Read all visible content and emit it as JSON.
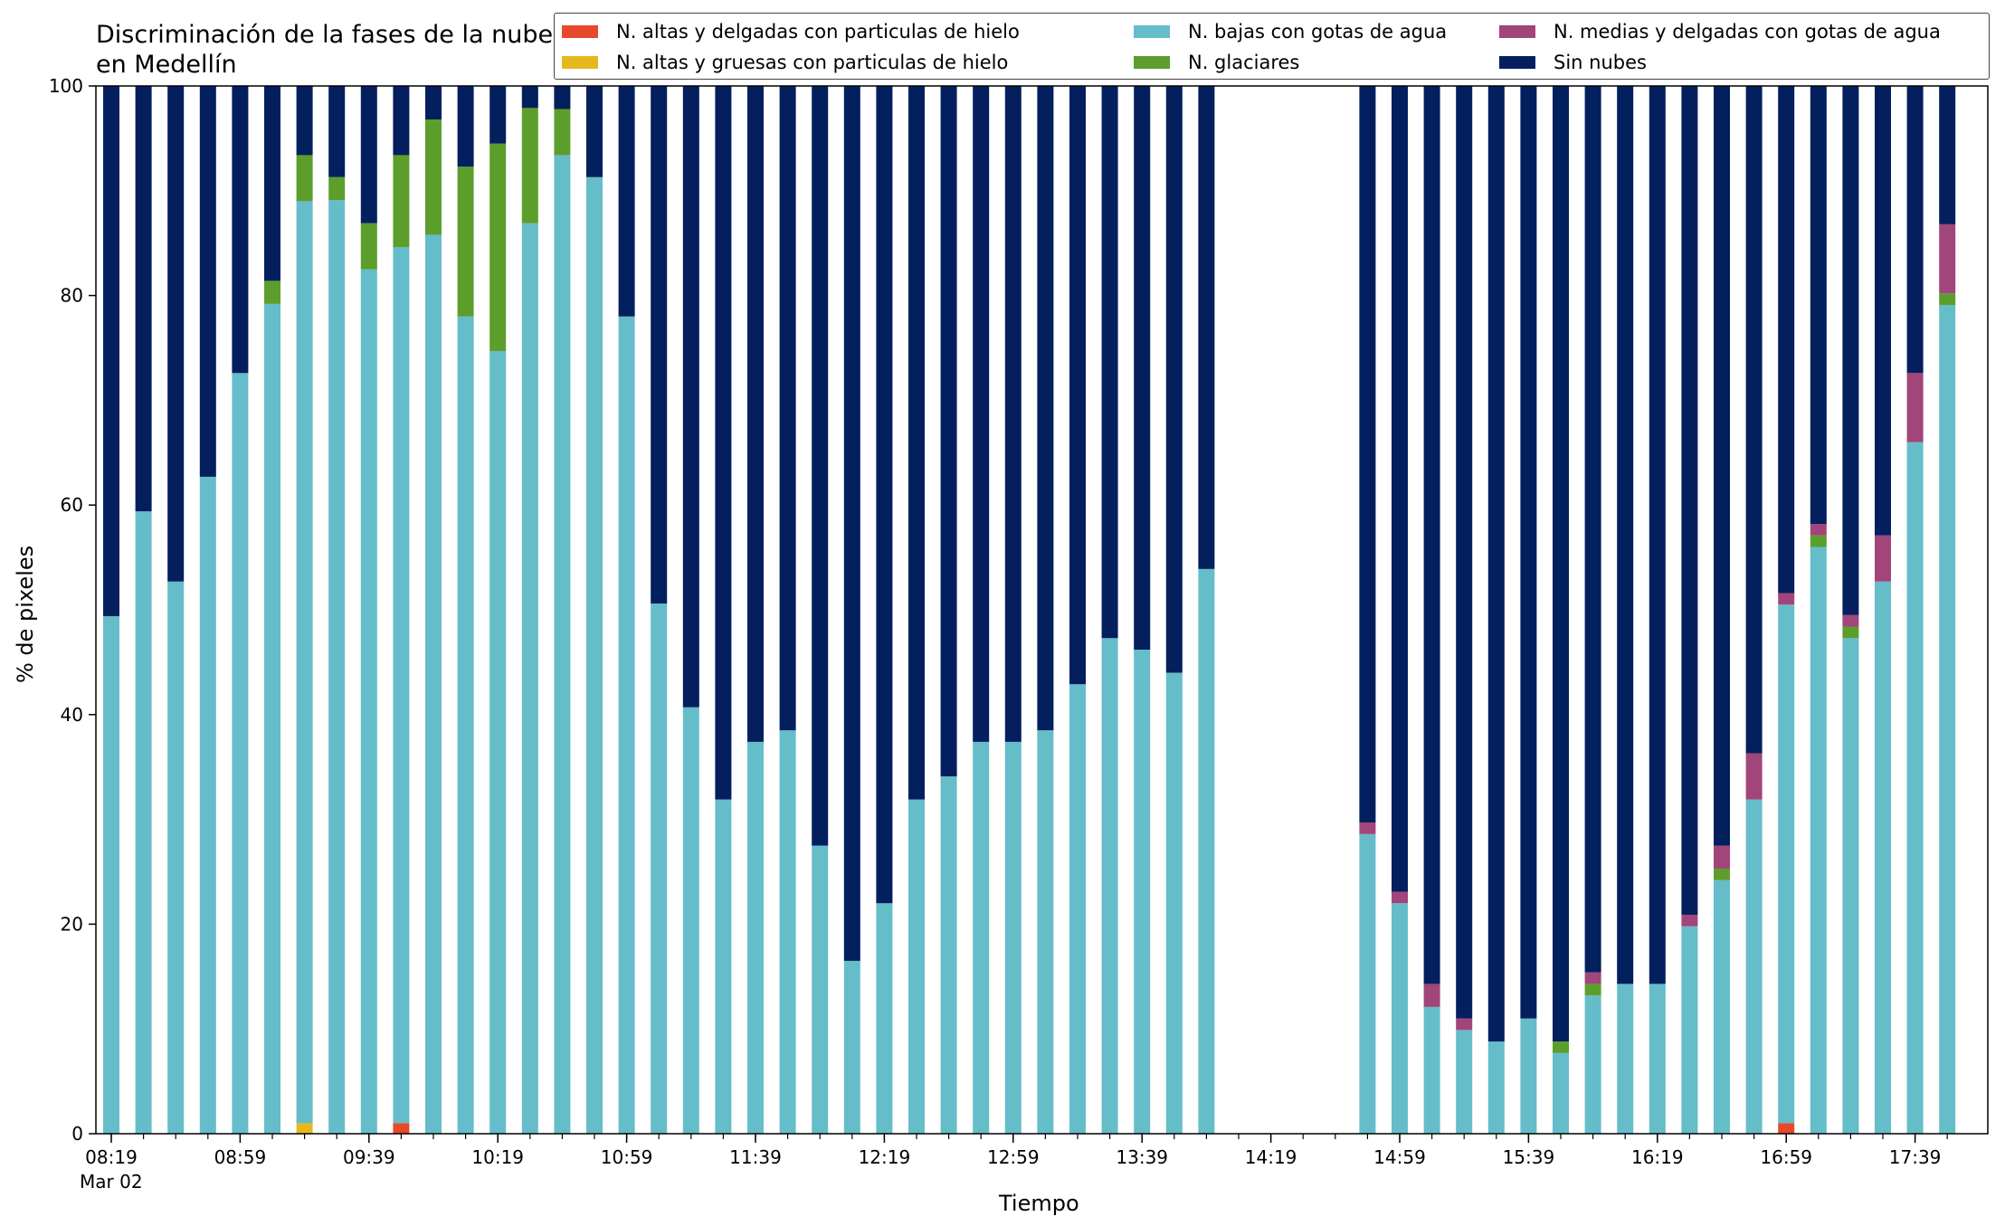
{
  "chart_data": {
    "type": "bar",
    "stacked": true,
    "title": "Discriminación de la fases de la nube en Medellín",
    "xlabel": "Tiempo",
    "ylabel": "% de pixeles",
    "ylim": [
      0,
      100
    ],
    "yticks": [
      "0",
      "20",
      "40",
      "60",
      "80",
      "100"
    ],
    "xticks": [
      {
        "index": 0,
        "label": "08:19",
        "sublabel": "Mar 02"
      },
      {
        "index": 4,
        "label": "08:59"
      },
      {
        "index": 8,
        "label": "09:39"
      },
      {
        "index": 12,
        "label": "10:19"
      },
      {
        "index": 16,
        "label": "10:59"
      },
      {
        "index": 20,
        "label": "11:39"
      },
      {
        "index": 24,
        "label": "12:19"
      },
      {
        "index": 28,
        "label": "12:59"
      },
      {
        "index": 32,
        "label": "13:39"
      },
      {
        "index": 36,
        "label": "14:19"
      },
      {
        "index": 40,
        "label": "14:59"
      },
      {
        "index": 44,
        "label": "15:39"
      },
      {
        "index": 48,
        "label": "16:19"
      },
      {
        "index": 52,
        "label": "16:59"
      },
      {
        "index": 56,
        "label": "17:39"
      }
    ],
    "categories": [
      "08:19",
      "08:29",
      "08:39",
      "08:49",
      "08:59",
      "09:09",
      "09:19",
      "09:29",
      "09:39",
      "09:49",
      "09:59",
      "10:09",
      "10:19",
      "10:29",
      "10:39",
      "10:49",
      "10:59",
      "11:09",
      "11:19",
      "11:29",
      "11:39",
      "11:49",
      "11:59",
      "12:09",
      "12:19",
      "12:29",
      "12:39",
      "12:49",
      "12:59",
      "13:09",
      "13:19",
      "13:29",
      "13:39",
      "13:49",
      "13:59",
      "14:09",
      "14:19",
      "14:29",
      "14:39",
      "14:49",
      "14:59",
      "15:09",
      "15:19",
      "15:29",
      "15:39",
      "15:49",
      "15:59",
      "16:09",
      "16:19",
      "16:29",
      "16:39",
      "16:49",
      "16:59",
      "17:09",
      "17:19",
      "17:29",
      "17:39",
      "17:49"
    ],
    "legend_placement": "top-right",
    "series": [
      {
        "name": "N. altas y delgadas con particulas de hielo",
        "color": "#e8492a",
        "values": [
          0,
          0,
          0,
          0,
          0,
          0,
          0,
          0,
          0,
          1,
          0,
          0,
          0,
          0,
          0,
          0,
          0,
          0,
          0,
          0,
          0,
          0,
          0,
          0,
          0,
          0,
          0,
          0,
          0,
          0,
          0,
          0,
          0,
          0,
          0,
          null,
          null,
          null,
          null,
          0,
          0,
          0,
          0,
          0,
          0,
          0,
          0,
          0,
          0,
          0,
          0,
          0,
          1,
          0,
          0,
          0,
          0,
          0
        ]
      },
      {
        "name": "N. altas y gruesas con particulas de hielo",
        "color": "#e6b81e",
        "values": [
          0,
          0,
          0,
          0,
          0,
          0,
          1,
          0,
          0,
          0,
          0,
          0,
          0,
          0,
          0,
          0,
          0,
          0,
          0,
          0,
          0,
          0,
          0,
          0,
          0,
          0,
          0,
          0,
          0,
          0,
          0,
          0,
          0,
          0,
          0,
          null,
          null,
          null,
          null,
          0,
          0,
          0,
          0,
          0,
          0,
          0,
          0,
          0,
          0,
          0,
          0,
          0,
          0,
          0,
          0,
          0,
          0,
          0
        ]
      },
      {
        "name": "N. bajas con gotas de agua",
        "color": "#65bdc9",
        "values": [
          49.4,
          59.4,
          52.7,
          62.7,
          72.6,
          79.2,
          88.0,
          89.1,
          82.5,
          83.6,
          85.8,
          78.0,
          74.7,
          86.9,
          93.4,
          91.3,
          78.0,
          50.6,
          40.7,
          31.9,
          37.4,
          38.5,
          27.5,
          16.5,
          22.0,
          31.9,
          34.1,
          37.4,
          37.4,
          38.5,
          42.9,
          47.3,
          46.2,
          44.0,
          53.9,
          null,
          null,
          null,
          null,
          28.6,
          22.0,
          12.1,
          9.9,
          8.8,
          11.0,
          7.7,
          13.2,
          14.3,
          14.3,
          19.8,
          24.2,
          31.9,
          49.5,
          56.0,
          47.3,
          52.7,
          66.0,
          79.1
        ]
      },
      {
        "name": "N. glaciares",
        "color": "#5c9e2c",
        "values": [
          0,
          0,
          0,
          0,
          0,
          2.2,
          4.4,
          2.2,
          4.4,
          8.8,
          11.0,
          14.3,
          19.8,
          11.0,
          4.4,
          0,
          0,
          0,
          0,
          0,
          0,
          0,
          0,
          0,
          0,
          0,
          0,
          0,
          0,
          0,
          0,
          0,
          0,
          0,
          0,
          null,
          null,
          null,
          null,
          0,
          0,
          0,
          0,
          0,
          0,
          1.1,
          1.1,
          0,
          0,
          0,
          1.1,
          0,
          0,
          1.1,
          1.1,
          0,
          0,
          1.1
        ]
      },
      {
        "name": "N. medias y delgadas con gotas de agua",
        "color": "#a1457a",
        "values": [
          0,
          0,
          0,
          0,
          0,
          0,
          0,
          0,
          0,
          0,
          0,
          0,
          0,
          0,
          0,
          0,
          0,
          0,
          0,
          0,
          0,
          0,
          0,
          0,
          0,
          0,
          0,
          0,
          0,
          0,
          0,
          0,
          0,
          0,
          0,
          null,
          null,
          null,
          null,
          1.1,
          1.1,
          2.2,
          1.1,
          0,
          0,
          0,
          1.1,
          0,
          0,
          1.1,
          2.2,
          4.4,
          1.1,
          1.1,
          1.1,
          4.4,
          6.6,
          6.6
        ]
      },
      {
        "name": "Sin nubes",
        "color": "#031f5e",
        "values": [
          50.6,
          40.6,
          47.3,
          37.3,
          27.4,
          18.6,
          6.6,
          8.7,
          13.1,
          6.6,
          3.2,
          7.7,
          5.5,
          2.1,
          2.2,
          8.7,
          22.0,
          49.4,
          59.3,
          68.1,
          62.6,
          61.5,
          72.5,
          83.5,
          78.0,
          68.1,
          65.9,
          62.6,
          62.6,
          61.5,
          57.1,
          52.7,
          53.8,
          56.0,
          46.1,
          null,
          null,
          null,
          null,
          70.3,
          76.9,
          85.7,
          89.0,
          91.2,
          89.0,
          91.2,
          84.6,
          85.7,
          85.7,
          79.1,
          72.5,
          63.7,
          48.4,
          41.8,
          50.5,
          42.9,
          27.4,
          13.2
        ]
      }
    ]
  }
}
